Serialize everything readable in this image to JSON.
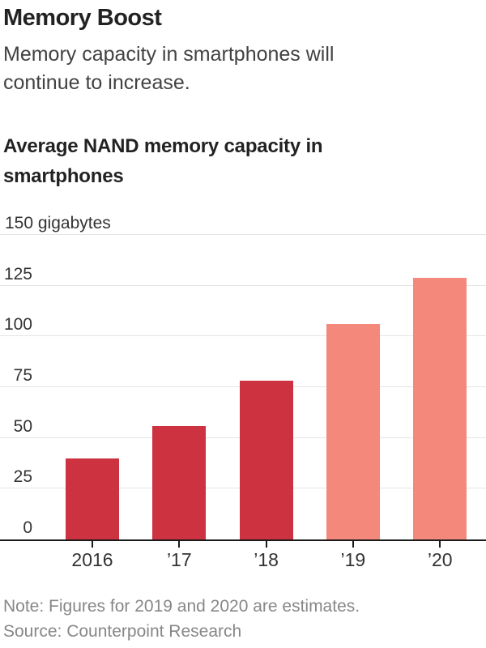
{
  "header": {
    "title": "Memory Boost",
    "subtitle": "Memory capacity in smartphones will continue to increase."
  },
  "chart_data": {
    "type": "bar",
    "title": "Average NAND memory capacity in smartphones",
    "unit_label": "gigabytes",
    "categories": [
      "2016",
      "’17",
      "’18",
      "’19",
      "’20"
    ],
    "values": [
      40,
      56,
      78,
      106,
      129
    ],
    "estimated": [
      false,
      false,
      false,
      true,
      true
    ],
    "ylim": [
      0,
      150
    ],
    "yticks": [
      0,
      25,
      50,
      75,
      100,
      125,
      150
    ],
    "ytick_top_label": "150 gigabytes",
    "grid": true,
    "legend": "none",
    "colors": {
      "actual_bar": "#cc323f",
      "estimate_bar": "#f4887b",
      "gridline": "#e5e5e5",
      "axis_line": "#1a1a1a",
      "note_text": "#878787"
    }
  },
  "footer": {
    "note": "Note: Figures for 2019 and 2020 are estimates.",
    "source": "Source: Counterpoint Research"
  }
}
